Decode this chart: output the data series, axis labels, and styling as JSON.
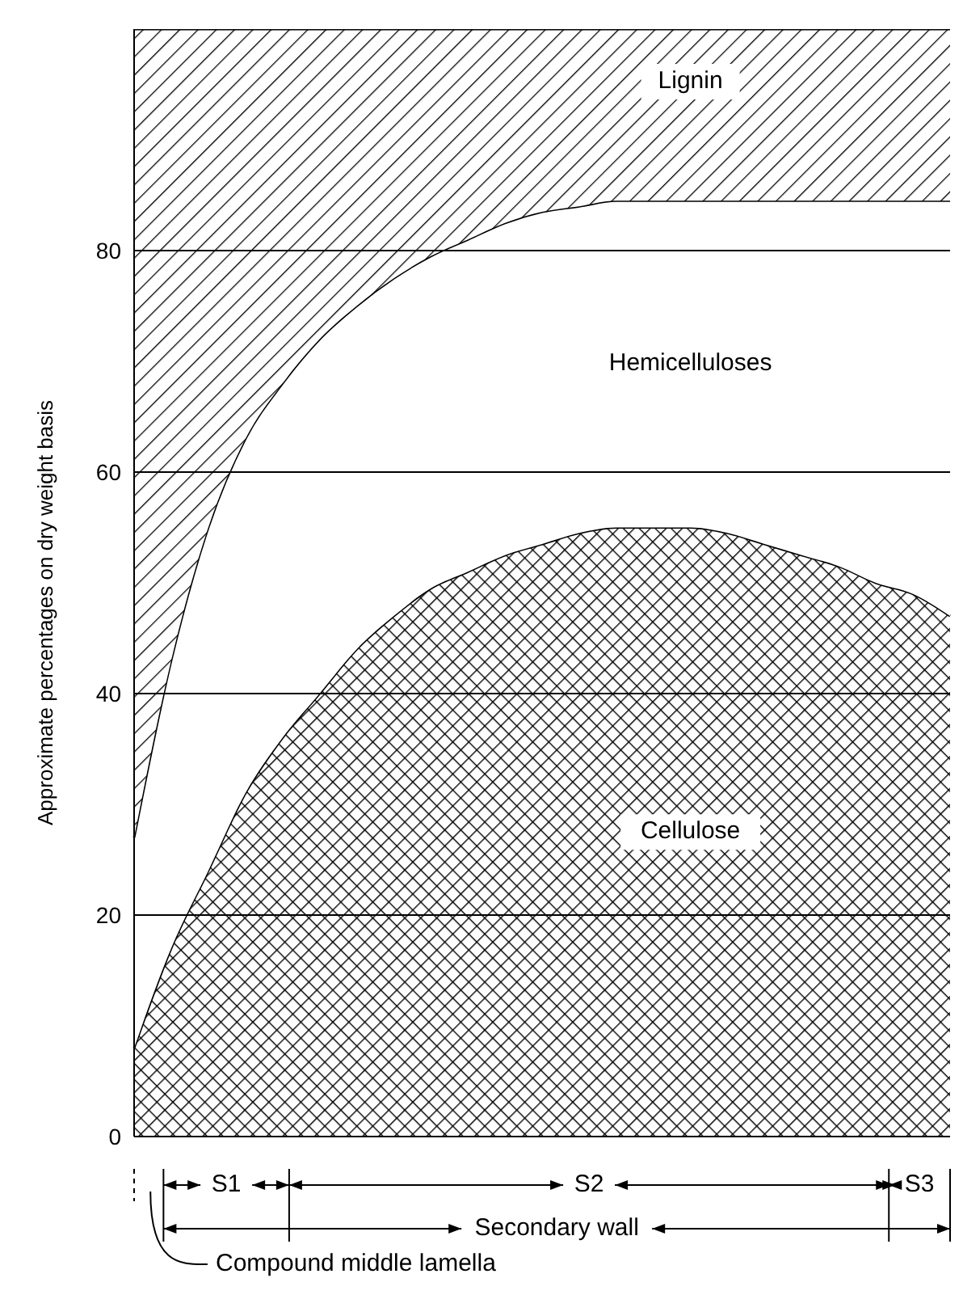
{
  "chart_data": {
    "type": "area",
    "stacked": true,
    "ylabel": "Approximate percentages on dry weight basis",
    "categories": [
      null,
      null,
      null,
      null,
      null,
      null,
      null,
      null,
      null,
      null,
      null,
      null,
      null,
      null,
      null,
      null,
      null,
      null,
      null,
      null,
      null,
      null,
      null
    ],
    "series": [
      {
        "name": "Cellulose",
        "color": "#000000",
        "values": [
          8,
          17,
          24,
          31,
          36,
          40,
          44,
          47,
          49.5,
          51,
          52.5,
          53.5,
          54.5,
          55,
          55,
          55,
          54.5,
          53.5,
          52.5,
          51.5,
          50,
          49,
          47
        ]
      },
      {
        "name": "Hemicelluloses",
        "color": "#ffffff",
        "values": [
          19,
          26,
          31,
          32,
          32,
          32,
          31,
          30.5,
          30,
          30,
          30,
          30,
          29.5,
          29.5,
          29.5,
          29.5,
          30,
          31,
          32,
          33,
          34.5,
          35.5,
          37.5
        ]
      },
      {
        "name": "Lignin",
        "color": "#000000",
        "values": [
          73,
          57,
          45,
          37,
          32,
          28,
          25,
          22.5,
          20.5,
          19,
          17.5,
          16.5,
          16,
          15.5,
          15.5,
          15.5,
          15.5,
          15.5,
          15.5,
          15.5,
          15.5,
          15.5,
          15.5
        ]
      }
    ],
    "ylim": [
      0,
      100
    ],
    "yticks": [
      0,
      20,
      40,
      60,
      80
    ],
    "grid": "y",
    "tick_labels": "y",
    "annotations": [
      "S1",
      "S2",
      "S3",
      "Secondary wall",
      "Compound middle lamella"
    ]
  }
}
